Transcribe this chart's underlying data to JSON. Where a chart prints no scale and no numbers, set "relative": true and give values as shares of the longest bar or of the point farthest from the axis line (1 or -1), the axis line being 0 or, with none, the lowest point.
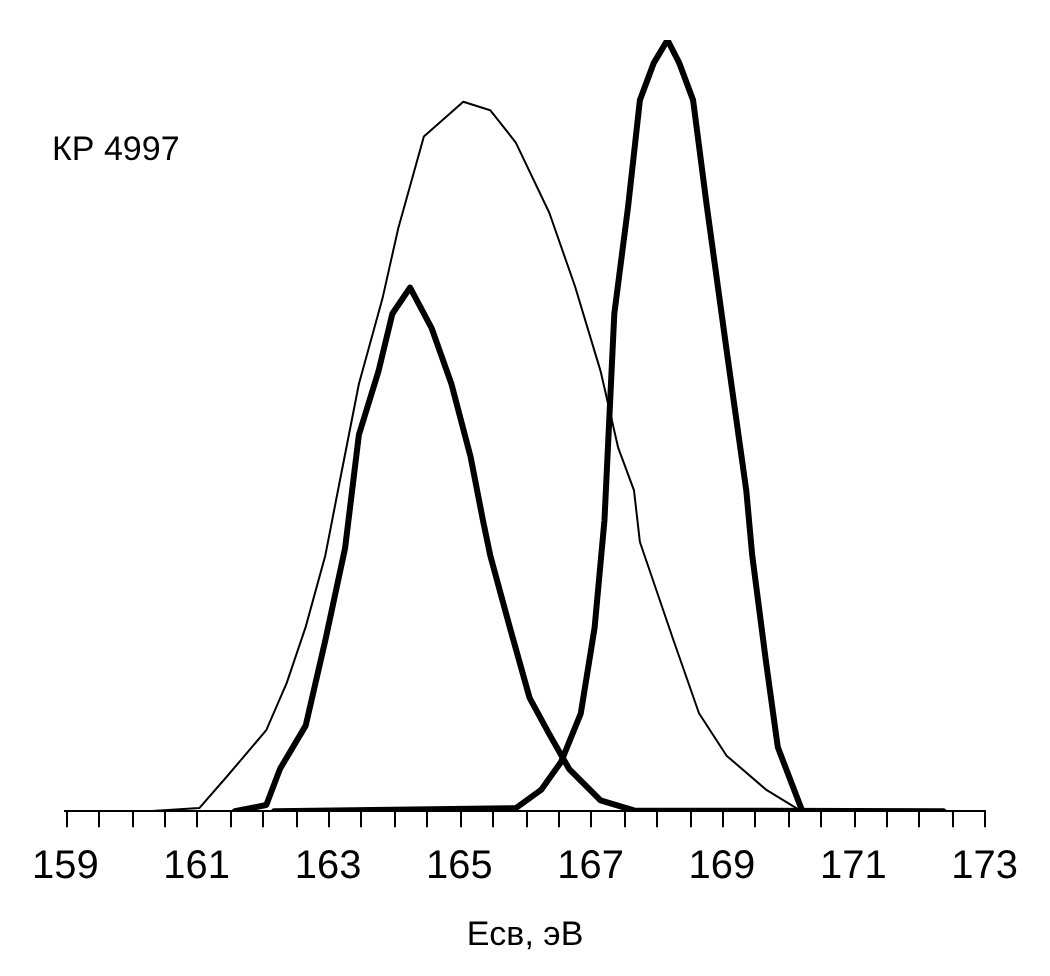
{
  "chart_data": {
    "type": "line",
    "relative": true,
    "xlabel": "Eсв, эВ",
    "annotations": [
      "КР 4997"
    ],
    "marker": "none",
    "grid": false,
    "legend": false,
    "tick_labels": "x",
    "xlim": [
      159,
      173
    ],
    "xticks": [
      159,
      {
        "value": 159.5,
        "label": null
      },
      {
        "value": 160,
        "label": null
      },
      {
        "value": 160.5,
        "label": null
      },
      161,
      {
        "value": 161.5,
        "label": null
      },
      {
        "value": 162,
        "label": null
      },
      {
        "value": 162.5,
        "label": null
      },
      163,
      {
        "value": 163.5,
        "label": null
      },
      {
        "value": 164,
        "label": null
      },
      {
        "value": 164.5,
        "label": null
      },
      165,
      {
        "value": 165.5,
        "label": null
      },
      {
        "value": 166,
        "label": null
      },
      {
        "value": 166.5,
        "label": null
      },
      167,
      {
        "value": 167.5,
        "label": null
      },
      {
        "value": 168,
        "label": null
      },
      {
        "value": 168.5,
        "label": null
      },
      169,
      {
        "value": 169.5,
        "label": null
      },
      {
        "value": 170,
        "label": null
      },
      {
        "value": 170.5,
        "label": null
      },
      171,
      {
        "value": 171.5,
        "label": null
      },
      {
        "value": 172,
        "label": null
      },
      {
        "value": 172.5,
        "label": null
      },
      173
    ],
    "series": [
      {
        "color": "#000000",
        "x": [
          160.26,
          161.04,
          161.46,
          162.06,
          162.37,
          162.66,
          162.96,
          163.17,
          163.47,
          163.83,
          164.07,
          164.46,
          165.06,
          165.47,
          165.86,
          166.37,
          166.76,
          167.15,
          167.42,
          167.66,
          167.75,
          168.26,
          168.65,
          169.07,
          169.67,
          170.15
        ],
        "values": [
          0,
          0.004,
          0.045,
          0.105,
          0.166,
          0.239,
          0.332,
          0.424,
          0.554,
          0.665,
          0.756,
          0.875,
          0.92,
          0.909,
          0.867,
          0.776,
          0.681,
          0.571,
          0.471,
          0.416,
          0.349,
          0.222,
          0.127,
          0.072,
          0.028,
          0.003
        ]
      },
      {
        "color": "#000000",
        "x": [
          161.58,
          162.06,
          162.27,
          162.66,
          162.96,
          163.26,
          163.47,
          163.77,
          163.98,
          164.25,
          164.58,
          164.88,
          165.17,
          165.36,
          165.47,
          165.77,
          166.07,
          166.37,
          166.67,
          167.15,
          167.66,
          172.37
        ],
        "values": [
          0,
          0.008,
          0.055,
          0.111,
          0.222,
          0.341,
          0.488,
          0.571,
          0.645,
          0.679,
          0.626,
          0.554,
          0.46,
          0.377,
          0.332,
          0.238,
          0.147,
          0.1,
          0.055,
          0.014,
          0.001,
          0
        ]
      },
      {
        "color": "#000000",
        "x": [
          162.18,
          165.86,
          166.25,
          166.55,
          166.85,
          167.06,
          167.21,
          167.36,
          167.57,
          167.75,
          167.96,
          168.17,
          168.35,
          168.56,
          168.77,
          169.07,
          169.37,
          169.46,
          169.67,
          169.85,
          170.21
        ],
        "values": [
          0,
          0.004,
          0.028,
          0.064,
          0.127,
          0.238,
          0.377,
          0.645,
          0.784,
          0.922,
          0.97,
          1,
          0.97,
          0.922,
          0.784,
          0.598,
          0.416,
          0.332,
          0.194,
          0.083,
          0.003
        ]
      }
    ]
  }
}
